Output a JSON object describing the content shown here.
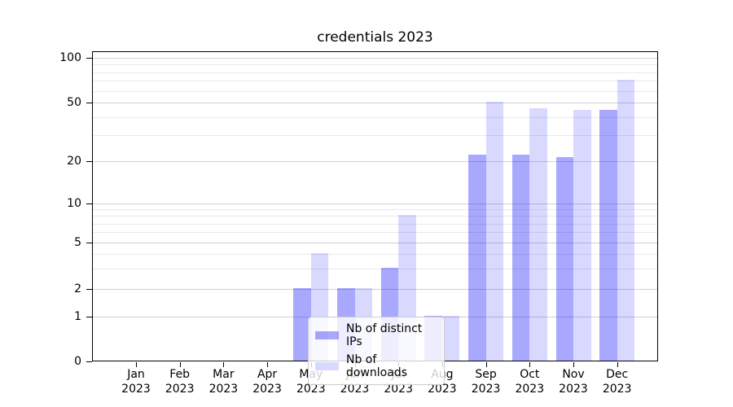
{
  "chart_data": {
    "type": "bar",
    "title": "credentials 2023",
    "categories": [
      "Jan 2023",
      "Feb 2023",
      "Mar 2023",
      "Apr 2023",
      "May 2023",
      "Jun 2023",
      "Jul 2023",
      "Aug 2023",
      "Sep 2023",
      "Oct 2023",
      "Nov 2023",
      "Dec 2023"
    ],
    "x_tick_month": [
      "Jan",
      "Feb",
      "Mar",
      "Apr",
      "May",
      "Jun",
      "Jul",
      "Aug",
      "Sep",
      "Oct",
      "Nov",
      "Dec"
    ],
    "x_tick_year": "2023",
    "series": [
      {
        "name": "Nb of distinct IPs",
        "color": "rgba(0,0,255,0.34)",
        "values": [
          0,
          0,
          0,
          0,
          2,
          2,
          3,
          1,
          22,
          22,
          21,
          44
        ]
      },
      {
        "name": "Nb of downloads",
        "color": "rgba(0,0,255,0.15)",
        "values": [
          0,
          0,
          0,
          0,
          4,
          2,
          8,
          1,
          50,
          45,
          44,
          70
        ]
      }
    ],
    "yscale": "symlog",
    "ylim": [
      0,
      100
    ],
    "yticks": [
      0,
      1,
      2,
      5,
      10,
      20,
      50,
      100
    ],
    "yticks_minor": [
      3,
      4,
      6,
      7,
      8,
      9,
      30,
      40,
      60,
      70,
      80,
      90
    ],
    "grid": true,
    "legend_position": "lower-center-inside",
    "colors": {
      "grid_major": "#d0d0d0",
      "grid_minor": "#e9e9e9",
      "spine": "#000000",
      "text": "#000000",
      "background": "#ffffff"
    }
  }
}
